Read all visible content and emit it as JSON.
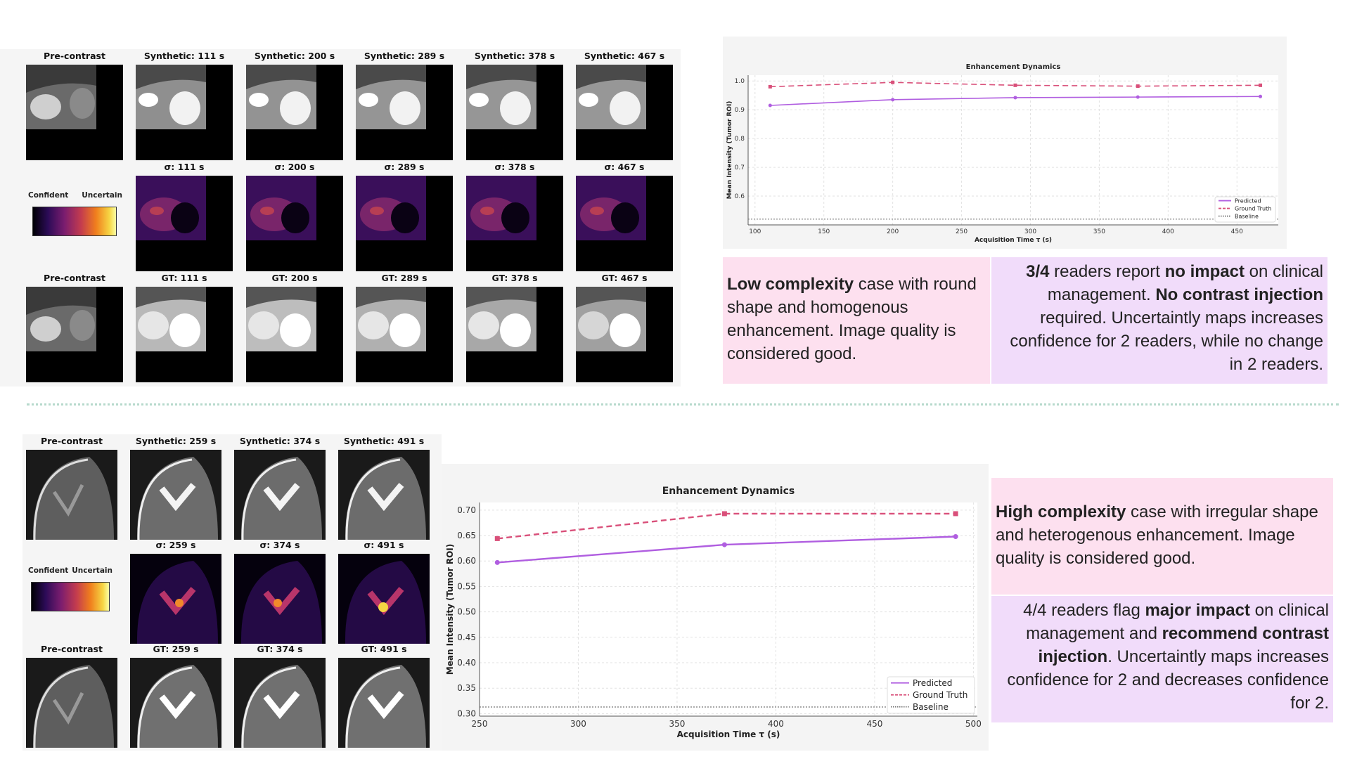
{
  "case1": {
    "rows": [
      [
        "Pre-contrast",
        "Synthetic: 111 s",
        "Synthetic: 200 s",
        "Synthetic: 289 s",
        "Synthetic: 378 s",
        "Synthetic: 467 s"
      ],
      [
        "",
        "σ: 111 s",
        "σ: 200 s",
        "σ: 289 s",
        "σ: 378 s",
        "σ: 467 s"
      ],
      [
        "Pre-contrast",
        "GT: 111 s",
        "GT: 200 s",
        "GT: 289 s",
        "GT: 378 s",
        "GT: 467 s"
      ]
    ],
    "colorbar": {
      "left": "Confident",
      "right": "Uncertain"
    },
    "description": {
      "lead": "Low complexity",
      "rest": " case with round shape and homogenous enhancement. Image quality is considered good."
    },
    "readers": {
      "p1b": "3/4",
      "p2": " readers report ",
      "p3b": "no impact",
      "p4": " on clinical management. ",
      "p5b": "No contrast injection",
      "p6": " required. Uncertaintly maps increases confidence for 2 readers, while no change in 2 readers."
    }
  },
  "case2": {
    "rows": [
      [
        "Pre-contrast",
        "Synthetic: 259 s",
        "Synthetic: 374 s",
        "Synthetic: 491 s"
      ],
      [
        "",
        "σ: 259 s",
        "σ: 374 s",
        "σ: 491 s"
      ],
      [
        "Pre-contrast",
        "GT: 259 s",
        "GT: 374 s",
        "GT: 491 s"
      ]
    ],
    "colorbar": {
      "left": "Confident",
      "right": "Uncertain"
    },
    "description": {
      "lead": "High complexity",
      "rest": " case with irregular shape and heterogenous enhancement. Image quality is considered good."
    },
    "readers": {
      "p1": "4/4 readers flag ",
      "p2b": "major impact",
      "p3": " on clinical management and ",
      "p4b": "recommend contrast injection",
      "p5": ". Uncertaintly maps increases confidence for 2 and decreases confidence for 2."
    }
  },
  "chart_data": [
    {
      "type": "line",
      "title": "Enhancement Dynamics",
      "xlabel": "Acquisition Time τ (s)",
      "ylabel": "Mean Intensity (Tumor ROI)",
      "xlim": [
        95,
        480
      ],
      "ylim": [
        0.5,
        1.02
      ],
      "xticks": [
        100,
        150,
        200,
        250,
        300,
        350,
        400,
        450
      ],
      "yticks": [
        0.6,
        0.7,
        0.8,
        0.9,
        1.0
      ],
      "x": [
        111,
        200,
        289,
        378,
        467
      ],
      "series": [
        {
          "name": "Predicted",
          "values": [
            0.915,
            0.935,
            0.942,
            0.944,
            0.946
          ],
          "color": "#b05ee0",
          "style": "solid"
        },
        {
          "name": "Ground Truth",
          "values": [
            0.98,
            0.995,
            0.985,
            0.982,
            0.985
          ],
          "color": "#d9507a",
          "style": "dashed"
        }
      ],
      "baseline": {
        "name": "Baseline",
        "value": 0.52
      },
      "grid": true,
      "legend": "bottom-right"
    },
    {
      "type": "line",
      "title": "Enhancement Dynamics",
      "xlabel": "Acquisition Time τ (s)",
      "ylabel": "Mean Intensity (Tumor ROI)",
      "xlim": [
        250,
        502
      ],
      "ylim": [
        0.295,
        0.715
      ],
      "xticks": [
        250,
        300,
        350,
        400,
        450,
        500
      ],
      "yticks": [
        0.3,
        0.35,
        0.4,
        0.45,
        0.5,
        0.55,
        0.6,
        0.65,
        0.7
      ],
      "x": [
        259,
        374,
        491
      ],
      "series": [
        {
          "name": "Predicted",
          "values": [
            0.597,
            0.632,
            0.648
          ],
          "color": "#b05ee0",
          "style": "solid"
        },
        {
          "name": "Ground Truth",
          "values": [
            0.644,
            0.693,
            0.693
          ],
          "color": "#d9507a",
          "style": "dashed"
        }
      ],
      "baseline": {
        "name": "Baseline",
        "value": 0.313
      },
      "grid": true,
      "legend": "bottom-right"
    }
  ]
}
